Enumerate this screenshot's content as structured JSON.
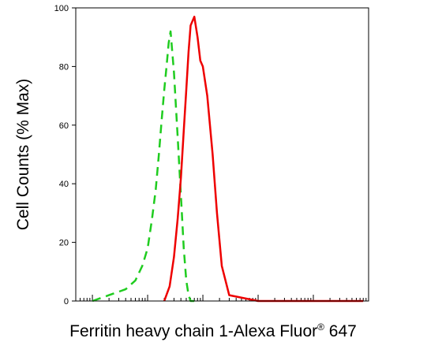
{
  "chart_data": {
    "type": "line",
    "xlabel": "Ferritin heavy chain 1-Alexa Fluor",
    "xlabel_sup": "®",
    "xlabel_suffix": " 647",
    "ylabel": "Cell Counts (% Max)",
    "ylim": [
      0,
      100
    ],
    "x_scale": "log",
    "xlim": [
      0.5,
      100000
    ],
    "x_tick_labels_shown": false,
    "yticks": [
      0,
      20,
      40,
      60,
      80,
      100
    ],
    "grid": false,
    "legend": "none",
    "series": [
      {
        "color": "#1fcc1f",
        "style": "dashed",
        "x": [
          1.0,
          2.0,
          4.0,
          6.0,
          8.0,
          10.0,
          12.0,
          14.0,
          16.0,
          18.0,
          20.0,
          22.0,
          24.0,
          26.0,
          30.0,
          35.0,
          40.0,
          45.0,
          50.0,
          55.0,
          60.0,
          70.0
        ],
        "y": [
          0,
          2,
          4,
          7,
          12,
          18,
          28,
          38,
          50,
          62,
          72,
          80,
          88,
          92,
          78,
          56,
          36,
          18,
          7,
          2,
          0,
          0
        ]
      },
      {
        "color": "#ee0000",
        "style": "solid",
        "x": [
          20.0,
          25.0,
          30.0,
          35.0,
          40.0,
          45.0,
          50.0,
          55.0,
          60.0,
          70.0,
          80.0,
          90.0,
          100.0,
          120.0,
          150.0,
          180.0,
          220.0,
          300.0,
          1000.0,
          10000.0,
          80000.0
        ],
        "y": [
          0,
          5,
          15,
          28,
          42,
          58,
          72,
          85,
          94,
          97,
          90,
          82,
          80,
          70,
          50,
          30,
          12,
          2,
          0,
          0,
          0
        ]
      }
    ]
  }
}
